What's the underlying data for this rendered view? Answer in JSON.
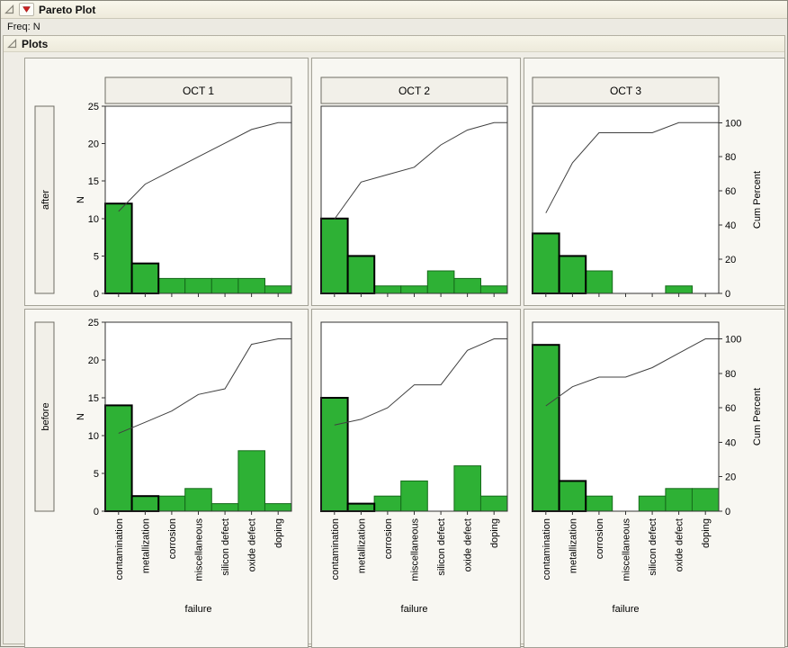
{
  "report": {
    "title": "Pareto Plot",
    "freq_label": "Freq: N",
    "plots_section_label": "Plots"
  },
  "icons": {
    "disclosure": "open-disclosure-triangle",
    "red_triangle": "red-triangle-menu"
  },
  "colors": {
    "bar_fill": "#2eb135",
    "bar_stroke": "#156a1a",
    "bar_stroke_bold": "#000000",
    "cum_line": "#404040",
    "header_fill": "#f2f0e9",
    "frame": "#333333"
  },
  "chart_data": {
    "type": "bar",
    "subtype": "pareto-trellis",
    "title": "Pareto Plot",
    "categories": [
      "contamination",
      "metallization",
      "corrosion",
      "miscellaneous",
      "silicon defect",
      "oxide defect",
      "doping"
    ],
    "xlabel": "failure",
    "ylabel_left": "N",
    "ylabel_right": "Cum Percent",
    "ylim_left": [
      0,
      25
    ],
    "ylim_right": [
      0,
      100
    ],
    "left_ticks": [
      0,
      5,
      10,
      15,
      20,
      25
    ],
    "right_ticks": [
      0,
      20,
      40,
      60,
      80,
      100
    ],
    "col_headers": [
      "OCT 1",
      "OCT 2",
      "OCT 3"
    ],
    "row_headers": [
      "after",
      "before"
    ],
    "grid": false,
    "legend": "none",
    "bold_outline_first_n": 2,
    "cells": [
      {
        "row": "after",
        "col": "OCT 1",
        "values": [
          12,
          4,
          2,
          2,
          2,
          2,
          1
        ],
        "cum_percent": [
          48,
          64,
          72,
          80,
          88,
          96,
          100
        ]
      },
      {
        "row": "after",
        "col": "OCT 2",
        "values": [
          10,
          5,
          1,
          1,
          3,
          2,
          1
        ],
        "cum_percent": [
          43.5,
          65.2,
          69.6,
          73.9,
          87,
          95.7,
          100
        ]
      },
      {
        "row": "after",
        "col": "OCT 3",
        "values": [
          8,
          5,
          3,
          0,
          0,
          1,
          0
        ],
        "cum_percent": [
          47.1,
          76.5,
          94.1,
          94.1,
          94.1,
          100,
          100
        ]
      },
      {
        "row": "before",
        "col": "OCT 1",
        "values": [
          14,
          2,
          2,
          3,
          1,
          8,
          1
        ],
        "cum_percent": [
          45.2,
          51.6,
          58.1,
          67.7,
          71,
          96.8,
          100
        ]
      },
      {
        "row": "before",
        "col": "OCT 2",
        "values": [
          15,
          1,
          2,
          4,
          0,
          6,
          2
        ],
        "cum_percent": [
          50,
          53.3,
          60,
          73.3,
          73.3,
          93.3,
          100
        ]
      },
      {
        "row": "before",
        "col": "OCT 3",
        "values": [
          22,
          4,
          2,
          0,
          2,
          3,
          3
        ],
        "cum_percent": [
          61.1,
          72.2,
          77.8,
          77.8,
          83.3,
          91.7,
          100
        ]
      }
    ]
  }
}
